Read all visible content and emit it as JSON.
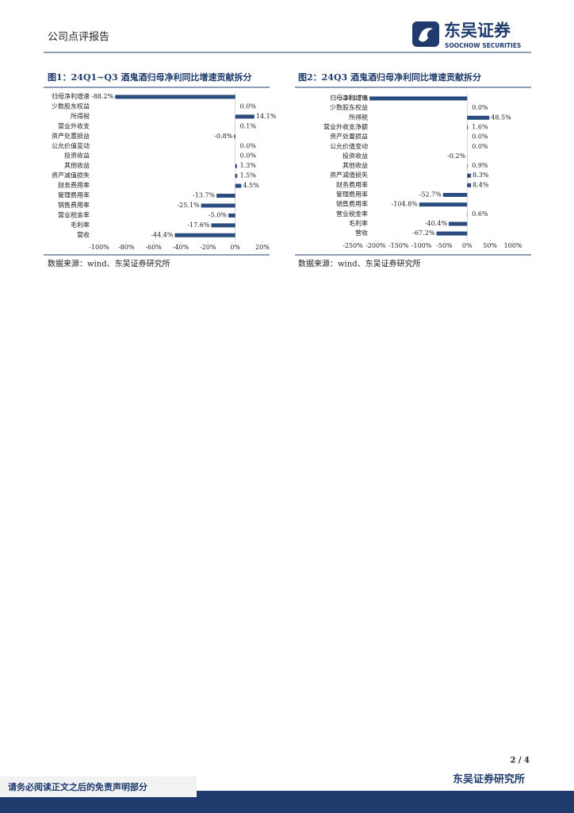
{
  "header": {
    "report_type": "公司点评报告",
    "logo_cn": "东吴证券",
    "logo_en": "SOOCHOW SECURITIES"
  },
  "chart_data": [
    {
      "type": "bar",
      "orientation": "horizontal",
      "title": "图1：24Q1~Q3 酒鬼酒归母净利同比增速贡献拆分",
      "color": "#2b4c7e",
      "categories": [
        "归母净利增速",
        "少数股东权益",
        "所得税",
        "营业外收支",
        "资产处置损益",
        "公允价值变动",
        "投资收益",
        "其他收益",
        "资产减值损失",
        "财务费用率",
        "管理费用率",
        "销售费用率",
        "营业税金率",
        "毛利率",
        "营收"
      ],
      "values": [
        -88.2,
        0.0,
        14.1,
        0.1,
        -0.8,
        0.0,
        0.0,
        1.3,
        1.5,
        4.5,
        -13.7,
        -25.1,
        -5.0,
        -17.6,
        -44.4
      ],
      "value_labels": [
        "-88.2%",
        "0.0%",
        "14.1%",
        "0.1%",
        "-0.8%",
        "0.0%",
        "0.0%",
        "1.3%",
        "1.5%",
        "4.5%",
        "-13.7%",
        "-25.1%",
        "-5.0%",
        "-17.6%",
        "-44.4%"
      ],
      "xlim": [
        -100,
        20
      ],
      "xticks": [
        {
          "value": -100,
          "label": "-100%"
        },
        {
          "value": -80,
          "label": "-80%"
        },
        {
          "value": -60,
          "label": "-60%"
        },
        {
          "value": -40,
          "label": "-40%"
        },
        {
          "value": -20,
          "label": "-20%"
        },
        {
          "value": 0,
          "label": "0%"
        },
        {
          "value": 20,
          "label": "20%"
        }
      ],
      "source": "数据来源：wind、东吴证券研究所"
    },
    {
      "type": "bar",
      "orientation": "horizontal",
      "title": "图2：24Q3 酒鬼酒归母净利同比增速贡献拆分",
      "color": "#2b4c7e",
      "categories": [
        "归母净利增速",
        "少数股东权益",
        "所得税",
        "营业外收支净额",
        "资产处置损益",
        "公允价值变动",
        "投资收益",
        "其他收益",
        "资产减值损失",
        "财务费用率",
        "管理费用率",
        "销售费用率",
        "营业税金率",
        "毛利率",
        "营收"
      ],
      "values": [
        -213.7,
        0.0,
        48.5,
        1.6,
        0.0,
        0.0,
        -0.2,
        0.9,
        8.3,
        8.4,
        -52.7,
        -104.8,
        0.6,
        -40.4,
        -67.2
      ],
      "value_labels": [
        "-213.7%",
        "0.0%",
        "48.5%",
        "1.6%",
        "0.0%",
        "0.0%",
        "-0.2%",
        "0.9%",
        "8.3%",
        "8.4%",
        "-52.7%",
        "-104.8%",
        "0.6%",
        "-40.4%",
        "-67.2%"
      ],
      "xlim": [
        -250,
        100
      ],
      "xticks": [
        {
          "value": -250,
          "label": "-250%"
        },
        {
          "value": -200,
          "label": "-200%"
        },
        {
          "value": -150,
          "label": "-150%"
        },
        {
          "value": -100,
          "label": "-100%"
        },
        {
          "value": -50,
          "label": "-50%"
        },
        {
          "value": 0,
          "label": "0%"
        },
        {
          "value": 50,
          "label": "50%"
        },
        {
          "value": 100,
          "label": "100%"
        }
      ],
      "source": "数据来源：wind、东吴证券研究所"
    }
  ],
  "footer": {
    "page": "2 / 4",
    "institute": "东吴证券研究所",
    "disclaimer": "请务必阅读正文之后的免责声明部分"
  }
}
